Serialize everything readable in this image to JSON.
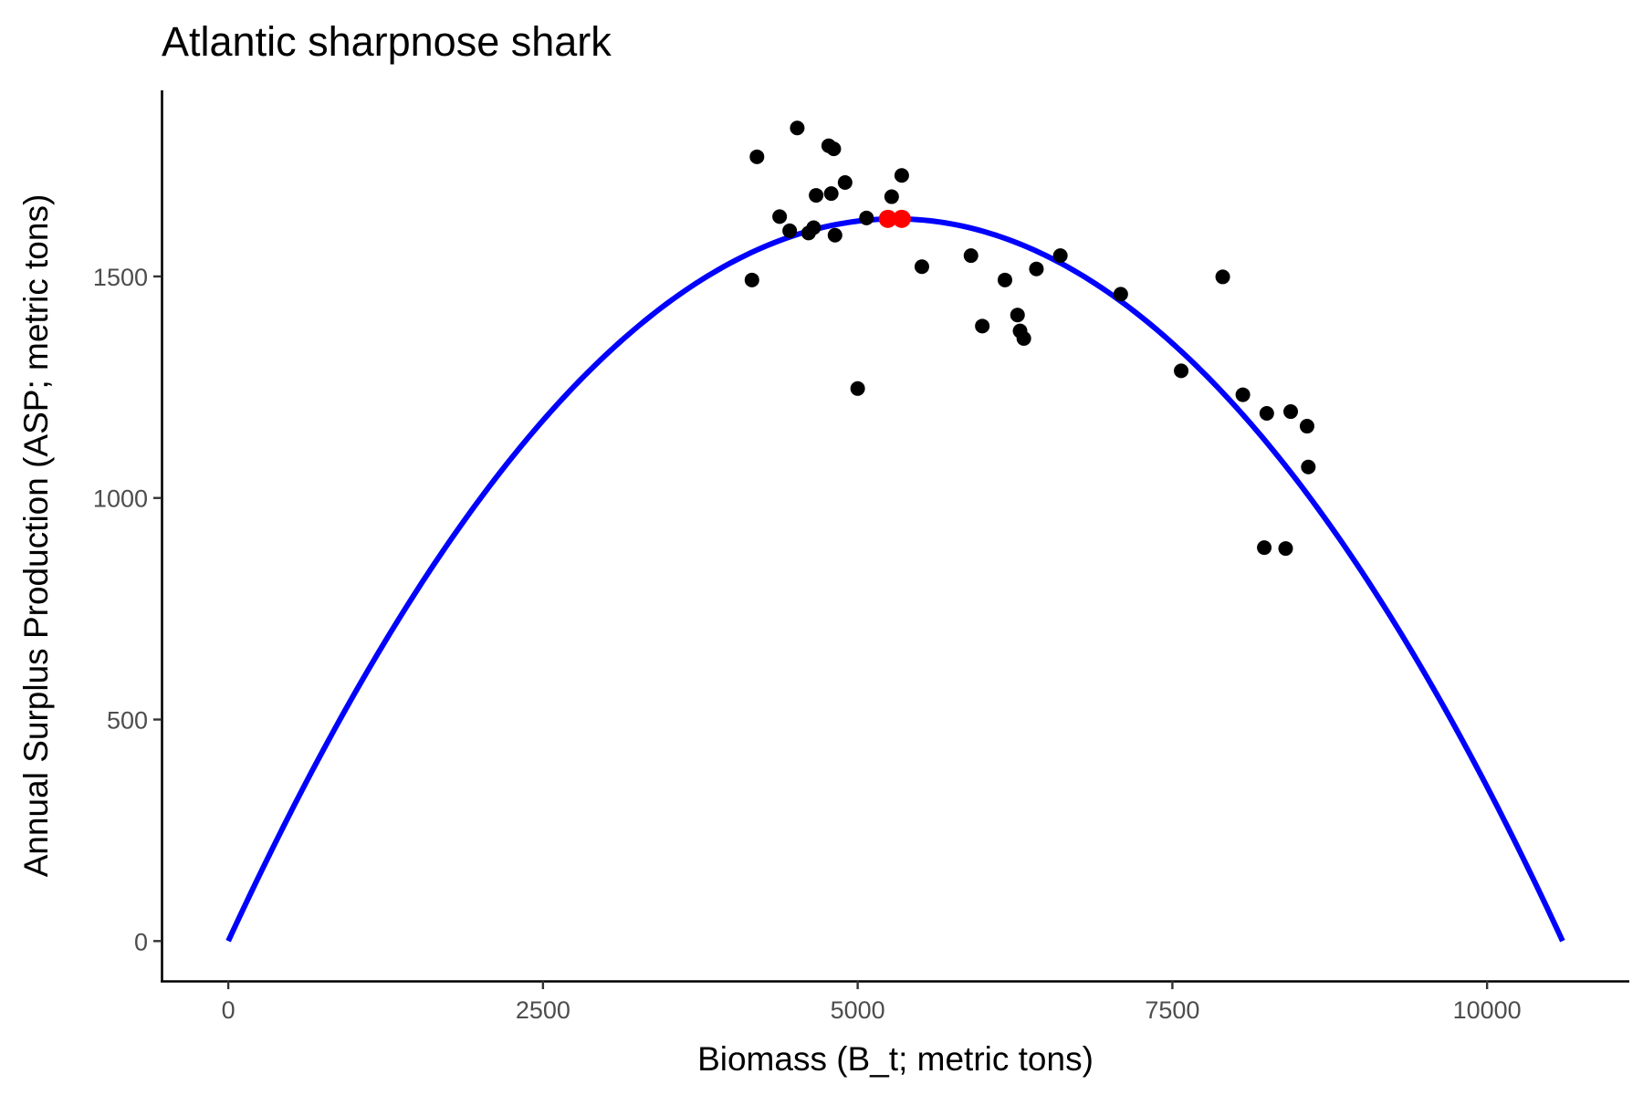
{
  "chart_data": {
    "type": "scatter",
    "title": "Atlantic sharpnose shark",
    "xlabel": "Biomass (B_t; metric tons)",
    "ylabel": "Annual Surplus Production (ASP; metric tons)",
    "xlim": [
      -530,
      11130
    ],
    "ylim": [
      -90,
      1920
    ],
    "x_ticks": [
      0,
      2500,
      5000,
      7500,
      10000
    ],
    "y_ticks": [
      0,
      500,
      1000,
      1500
    ],
    "x_tick_labels": [
      "0",
      "2500",
      "5000",
      "7500",
      "10000"
    ],
    "y_tick_labels": [
      "0",
      "500",
      "1000",
      "1500"
    ],
    "grid": false,
    "legend": "none",
    "curve": {
      "name": "",
      "kind": "parabola",
      "x_range": [
        0,
        10600
      ],
      "vertex_x": 5300,
      "peak_y": 1630,
      "color": "#0000ff"
    },
    "series": [
      {
        "name": "",
        "color": "#000000",
        "points": [
          [
            4160,
            1492
          ],
          [
            4200,
            1770
          ],
          [
            4380,
            1635
          ],
          [
            4460,
            1603
          ],
          [
            4520,
            1835
          ],
          [
            4610,
            1598
          ],
          [
            4650,
            1610
          ],
          [
            4670,
            1683
          ],
          [
            4770,
            1795
          ],
          [
            4790,
            1687
          ],
          [
            4810,
            1788
          ],
          [
            4820,
            1593
          ],
          [
            4900,
            1712
          ],
          [
            5000,
            1247
          ],
          [
            5070,
            1632
          ],
          [
            5270,
            1680
          ],
          [
            5350,
            1728
          ],
          [
            5510,
            1522
          ],
          [
            5900,
            1547
          ],
          [
            5990,
            1388
          ],
          [
            6170,
            1492
          ],
          [
            6270,
            1413
          ],
          [
            6290,
            1377
          ],
          [
            6320,
            1360
          ],
          [
            6420,
            1517
          ],
          [
            6610,
            1547
          ],
          [
            7090,
            1460
          ],
          [
            7570,
            1287
          ],
          [
            7900,
            1499
          ],
          [
            8060,
            1233
          ],
          [
            8230,
            888
          ],
          [
            8250,
            1191
          ],
          [
            8400,
            886
          ],
          [
            8440,
            1195
          ],
          [
            8570,
            1162
          ],
          [
            8580,
            1070
          ]
        ]
      },
      {
        "name": "",
        "color": "#ff0000",
        "points": [
          [
            5240,
            1630
          ],
          [
            5350,
            1630
          ]
        ]
      }
    ]
  }
}
